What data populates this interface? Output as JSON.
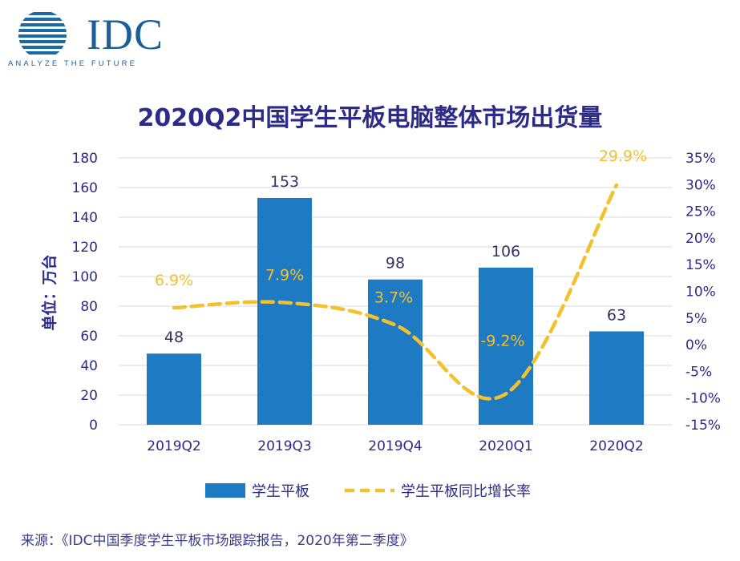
{
  "logo": {
    "brand": "IDC",
    "tagline": "ANALYZE THE FUTURE"
  },
  "chart_data": {
    "type": "bar",
    "title": "2020Q2中国学生平板电脑整体市场出货量",
    "ylabel": "单位：万台",
    "categories": [
      "2019Q2",
      "2019Q3",
      "2019Q4",
      "2020Q1",
      "2020Q2"
    ],
    "ylim": [
      0,
      180
    ],
    "yticks": [
      "180",
      "160",
      "140",
      "120",
      "100",
      "80",
      "60",
      "40",
      "20",
      "0"
    ],
    "y2lim": [
      -15,
      35
    ],
    "y2ticks": [
      "35%",
      "30%",
      "25%",
      "20%",
      "15%",
      "10%",
      "5%",
      "0%",
      "-5%",
      "-10%",
      "-15%"
    ],
    "grid": true,
    "legend_position": "bottom",
    "series": [
      {
        "name": "学生平板",
        "type": "bar",
        "axis": "left",
        "color": "#1f7ac4",
        "values": [
          48,
          153,
          98,
          106,
          63
        ],
        "labels": [
          "48",
          "153",
          "98",
          "106",
          "63"
        ]
      },
      {
        "name": "学生平板同比增长率",
        "type": "line",
        "style": "dashed",
        "axis": "right",
        "color": "#f2c12e",
        "values": [
          6.9,
          7.9,
          3.7,
          -9.2,
          29.9
        ],
        "labels": [
          "6.9%",
          "7.9%",
          "3.7%",
          "-9.2%",
          "29.9%"
        ]
      }
    ]
  },
  "source": "来源：《IDC中国季度学生平板市场跟踪报告，2020年第二季度》"
}
